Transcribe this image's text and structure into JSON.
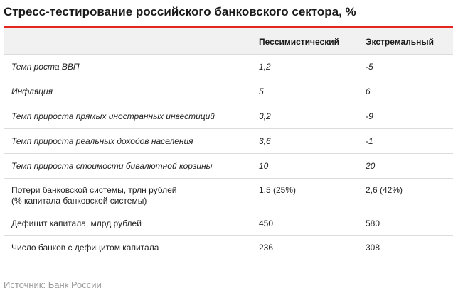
{
  "title": "Стресс-тестирование российского банковского сектора, %",
  "table": {
    "headers": [
      "",
      "Пессимистический",
      "Экстремальный"
    ],
    "rows": [
      {
        "label": "Темп роста ВВП",
        "pessimistic": "1,2",
        "extreme": "-5"
      },
      {
        "label": "Инфляция",
        "pessimistic": "5",
        "extreme": "6"
      },
      {
        "label": "Темп прироста прямых иностранных инвестиций",
        "pessimistic": "3,2",
        "extreme": "-9"
      },
      {
        "label": "Темп прироста реальных доходов населения",
        "pessimistic": "3,6",
        "extreme": "-1"
      },
      {
        "label": "Темп прироста стоимости бивалютной корзины",
        "pessimistic": "10",
        "extreme": "20"
      },
      {
        "label_line1": "Потери банковской системы, трлн рублей",
        "label_line2": "(% капитала банковской системы)",
        "pessimistic": "1,5 (25%)",
        "extreme": "2,6 (42%)"
      },
      {
        "label": "Дефицит капитала, млрд рублей",
        "pessimistic": "450",
        "extreme": "580"
      },
      {
        "label": "Число банков с дефицитом капитала",
        "pessimistic": "236",
        "extreme": "308"
      }
    ]
  },
  "source": "Источник: Банк России",
  "colors": {
    "accent_rule": "#e3261f",
    "header_bg": "#f1f1f1",
    "source_text": "#9a9a9a"
  }
}
